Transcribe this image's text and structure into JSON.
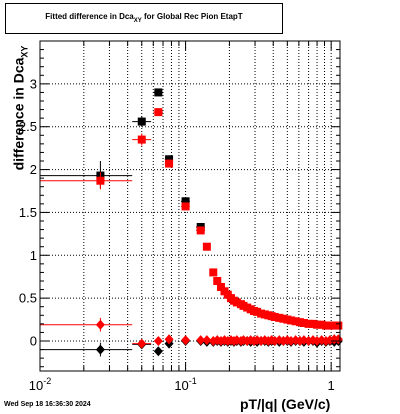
{
  "title": {
    "main": "Fitted difference in Dca",
    "sub": "XY",
    "rest": " for Global Rec Pion EtapT"
  },
  "timestamp": "Wed Sep 18 16:36:30 2024",
  "chart_data": {
    "type": "scatter",
    "xlabel": "pT/|q| (GeV/c)",
    "ylabel": {
      "main": "difference in Dca",
      "sub": "XY"
    },
    "x_scale": "log",
    "xlim": [
      0.01,
      1.15
    ],
    "ylim": [
      -0.35,
      3.5
    ],
    "x_ticks": [
      {
        "value": 0.01,
        "label": "10",
        "sup": "-2"
      },
      {
        "value": 0.1,
        "label": "10",
        "sup": "-1"
      },
      {
        "value": 1,
        "label": "1",
        "sup": ""
      }
    ],
    "y_ticks": [
      {
        "value": 0,
        "label": "0"
      },
      {
        "value": 0.5,
        "label": "0.5"
      },
      {
        "value": 1,
        "label": "1"
      },
      {
        "value": 1.5,
        "label": "1.5"
      },
      {
        "value": 2,
        "label": "2"
      },
      {
        "value": 2.5,
        "label": "2.5"
      },
      {
        "value": 3,
        "label": "3"
      }
    ],
    "grid": true,
    "colors": {
      "black": "#000000",
      "red": "#ff0000"
    },
    "series": [
      {
        "marker": "square",
        "color": "#000000",
        "points": [
          {
            "x": 0.026,
            "y": 1.93,
            "xlo": 0.01,
            "xhi": 0.043,
            "ylo": 1.78,
            "yhi": 2.1
          },
          {
            "x": 0.05,
            "y": 2.56,
            "xlo": 0.043,
            "xhi": 0.058,
            "ylo": 2.5,
            "yhi": 2.62
          },
          {
            "x": 0.065,
            "y": 2.9,
            "xlo": 0.06,
            "xhi": 0.07
          },
          {
            "x": 0.077,
            "y": 2.12,
            "xlo": 0.072,
            "xhi": 0.082
          },
          {
            "x": 0.1,
            "y": 1.63,
            "xlo": 0.093,
            "xhi": 0.107
          },
          {
            "x": 0.127,
            "y": 1.33,
            "xlo": 0.118,
            "xhi": 0.136
          }
        ]
      },
      {
        "marker": "square",
        "color": "#ff0000",
        "points": [
          {
            "x": 0.026,
            "y": 1.87,
            "xlo": 0.01,
            "xhi": 0.043,
            "ylo": 1.77,
            "yhi": 1.97
          },
          {
            "x": 0.05,
            "y": 2.35,
            "xlo": 0.043,
            "xhi": 0.058,
            "ylo": 2.28,
            "yhi": 2.42
          },
          {
            "x": 0.065,
            "y": 2.67,
            "xlo": 0.06,
            "xhi": 0.07
          },
          {
            "x": 0.077,
            "y": 2.07,
            "xlo": 0.072,
            "xhi": 0.082
          },
          {
            "x": 0.1,
            "y": 1.57,
            "xlo": 0.093,
            "xhi": 0.107
          },
          {
            "x": 0.127,
            "y": 1.29,
            "xlo": 0.118,
            "xhi": 0.136
          },
          {
            "x": 0.14,
            "y": 1.1
          },
          {
            "x": 0.155,
            "y": 0.8
          },
          {
            "x": 0.165,
            "y": 0.7
          },
          {
            "x": 0.175,
            "y": 0.63
          },
          {
            "x": 0.185,
            "y": 0.58
          },
          {
            "x": 0.195,
            "y": 0.54
          },
          {
            "x": 0.205,
            "y": 0.5
          },
          {
            "x": 0.215,
            "y": 0.47
          },
          {
            "x": 0.225,
            "y": 0.45
          },
          {
            "x": 0.24,
            "y": 0.43
          },
          {
            "x": 0.25,
            "y": 0.41
          },
          {
            "x": 0.265,
            "y": 0.39
          },
          {
            "x": 0.28,
            "y": 0.37
          },
          {
            "x": 0.295,
            "y": 0.35
          },
          {
            "x": 0.31,
            "y": 0.34
          },
          {
            "x": 0.33,
            "y": 0.32
          },
          {
            "x": 0.35,
            "y": 0.31
          },
          {
            "x": 0.37,
            "y": 0.3
          },
          {
            "x": 0.39,
            "y": 0.29
          },
          {
            "x": 0.41,
            "y": 0.28
          },
          {
            "x": 0.44,
            "y": 0.27
          },
          {
            "x": 0.47,
            "y": 0.26
          },
          {
            "x": 0.5,
            "y": 0.25
          },
          {
            "x": 0.53,
            "y": 0.24
          },
          {
            "x": 0.57,
            "y": 0.23
          },
          {
            "x": 0.61,
            "y": 0.22
          },
          {
            "x": 0.65,
            "y": 0.21
          },
          {
            "x": 0.7,
            "y": 0.2
          },
          {
            "x": 0.75,
            "y": 0.2
          },
          {
            "x": 0.8,
            "y": 0.19
          },
          {
            "x": 0.86,
            "y": 0.19
          },
          {
            "x": 0.92,
            "y": 0.18
          },
          {
            "x": 0.98,
            "y": 0.18
          },
          {
            "x": 1.05,
            "y": 0.18
          },
          {
            "x": 1.12,
            "y": 0.18
          }
        ]
      },
      {
        "marker": "diamond",
        "color": "#000000",
        "points": [
          {
            "x": 0.026,
            "y": -0.1,
            "xlo": 0.01,
            "xhi": 0.043,
            "ylo": -0.18,
            "yhi": -0.02
          },
          {
            "x": 0.05,
            "y": -0.04,
            "xlo": 0.043,
            "xhi": 0.058
          },
          {
            "x": 0.065,
            "y": -0.12
          },
          {
            "x": 0.077,
            "y": -0.03
          },
          {
            "x": 0.1,
            "y": 0.0
          },
          {
            "x": 0.127,
            "y": 0.0
          },
          {
            "x": 0.14,
            "y": -0.01
          },
          {
            "x": 0.155,
            "y": -0.01
          },
          {
            "x": 0.165,
            "y": 0.0
          },
          {
            "x": 0.175,
            "y": -0.01
          },
          {
            "x": 0.185,
            "y": 0.0
          },
          {
            "x": 0.195,
            "y": -0.01
          },
          {
            "x": 0.205,
            "y": 0.0
          },
          {
            "x": 0.215,
            "y": -0.01
          },
          {
            "x": 0.225,
            "y": 0.0
          },
          {
            "x": 0.24,
            "y": -0.01
          },
          {
            "x": 0.25,
            "y": 0.0
          },
          {
            "x": 0.265,
            "y": 0.0
          },
          {
            "x": 0.28,
            "y": -0.01
          },
          {
            "x": 0.295,
            "y": 0.0
          },
          {
            "x": 0.31,
            "y": -0.01
          },
          {
            "x": 0.33,
            "y": 0.0
          },
          {
            "x": 0.35,
            "y": 0.0
          },
          {
            "x": 0.37,
            "y": -0.01
          },
          {
            "x": 0.39,
            "y": 0.0
          },
          {
            "x": 0.41,
            "y": 0.0
          },
          {
            "x": 0.44,
            "y": -0.01
          },
          {
            "x": 0.47,
            "y": 0.0
          },
          {
            "x": 0.5,
            "y": 0.0
          },
          {
            "x": 0.53,
            "y": -0.01
          },
          {
            "x": 0.57,
            "y": 0.0
          },
          {
            "x": 0.61,
            "y": 0.0
          },
          {
            "x": 0.65,
            "y": -0.01
          },
          {
            "x": 0.7,
            "y": 0.0
          },
          {
            "x": 0.75,
            "y": 0.0
          },
          {
            "x": 0.8,
            "y": -0.02
          },
          {
            "x": 0.86,
            "y": 0.0
          },
          {
            "x": 0.92,
            "y": -0.01
          },
          {
            "x": 0.98,
            "y": 0.0
          },
          {
            "x": 1.05,
            "y": -0.01
          },
          {
            "x": 1.12,
            "y": 0.0
          }
        ]
      },
      {
        "marker": "diamond",
        "color": "#ff0000",
        "points": [
          {
            "x": 0.026,
            "y": 0.19,
            "xlo": 0.01,
            "xhi": 0.043,
            "ylo": 0.11,
            "yhi": 0.27
          },
          {
            "x": 0.05,
            "y": -0.03,
            "xlo": 0.043,
            "xhi": 0.058
          },
          {
            "x": 0.065,
            "y": 0.0
          },
          {
            "x": 0.077,
            "y": 0.02
          },
          {
            "x": 0.1,
            "y": 0.01
          },
          {
            "x": 0.127,
            "y": 0.01
          },
          {
            "x": 0.14,
            "y": 0.01
          },
          {
            "x": 0.155,
            "y": 0.0
          },
          {
            "x": 0.165,
            "y": 0.01
          },
          {
            "x": 0.175,
            "y": 0.0
          },
          {
            "x": 0.185,
            "y": 0.01
          },
          {
            "x": 0.195,
            "y": 0.0
          },
          {
            "x": 0.205,
            "y": 0.01
          },
          {
            "x": 0.215,
            "y": 0.0
          },
          {
            "x": 0.225,
            "y": 0.01
          },
          {
            "x": 0.24,
            "y": 0.0
          },
          {
            "x": 0.25,
            "y": 0.01
          },
          {
            "x": 0.265,
            "y": 0.0
          },
          {
            "x": 0.28,
            "y": 0.01
          },
          {
            "x": 0.295,
            "y": 0.0
          },
          {
            "x": 0.31,
            "y": 0.01
          },
          {
            "x": 0.33,
            "y": 0.0
          },
          {
            "x": 0.35,
            "y": 0.01
          },
          {
            "x": 0.37,
            "y": 0.0
          },
          {
            "x": 0.39,
            "y": 0.01
          },
          {
            "x": 0.41,
            "y": 0.0
          },
          {
            "x": 0.44,
            "y": 0.01
          },
          {
            "x": 0.47,
            "y": 0.0
          },
          {
            "x": 0.5,
            "y": 0.01
          },
          {
            "x": 0.53,
            "y": 0.0
          },
          {
            "x": 0.57,
            "y": 0.01
          },
          {
            "x": 0.61,
            "y": 0.0
          },
          {
            "x": 0.65,
            "y": 0.01
          },
          {
            "x": 0.7,
            "y": 0.0
          },
          {
            "x": 0.75,
            "y": 0.01
          },
          {
            "x": 0.8,
            "y": 0.0
          },
          {
            "x": 0.86,
            "y": 0.01
          },
          {
            "x": 0.92,
            "y": 0.0
          },
          {
            "x": 0.98,
            "y": 0.01
          },
          {
            "x": 1.05,
            "y": 0.02
          },
          {
            "x": 1.12,
            "y": 0.02
          }
        ]
      }
    ]
  }
}
